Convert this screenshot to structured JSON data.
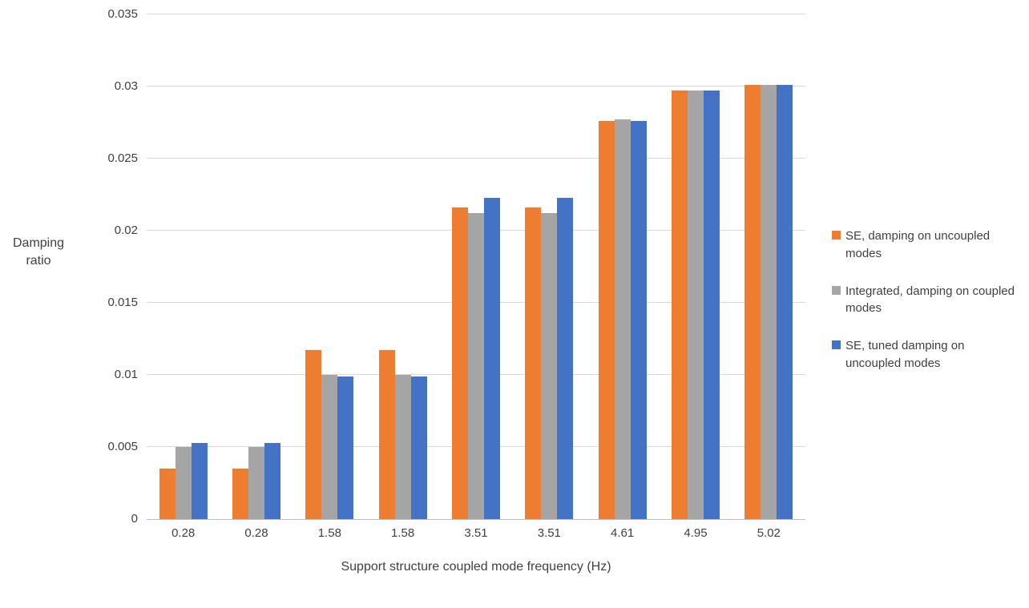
{
  "chart_data": {
    "type": "bar",
    "title": "",
    "xlabel": "Support structure coupled mode frequency (Hz)",
    "ylabel": "Damping ratio",
    "categories": [
      "0.28",
      "0.28",
      "1.58",
      "1.58",
      "3.51",
      "3.51",
      "4.61",
      "4.95",
      "5.02"
    ],
    "series": [
      {
        "name": "SE, damping on uncoupled modes",
        "color": "#ED7D31",
        "values": [
          0.0035,
          0.0035,
          0.0117,
          0.0117,
          0.0216,
          0.0216,
          0.0276,
          0.0297,
          0.0301
        ]
      },
      {
        "name": "Integrated, damping on coupled modes",
        "color": "#A5A5A5",
        "values": [
          0.005,
          0.005,
          0.01,
          0.01,
          0.0212,
          0.0212,
          0.0277,
          0.0297,
          0.0301
        ]
      },
      {
        "name": "SE, tuned damping on uncoupled modes",
        "color": "#4472C4",
        "values": [
          0.0053,
          0.0053,
          0.0099,
          0.0099,
          0.0223,
          0.0223,
          0.0276,
          0.0297,
          0.0301
        ]
      }
    ],
    "ylim": [
      0,
      0.035
    ],
    "yticks": [
      0,
      0.005,
      0.01,
      0.015,
      0.02,
      0.025,
      0.03,
      0.035
    ],
    "ytick_labels": [
      "0",
      "0.005",
      "0.01",
      "0.015",
      "0.02",
      "0.025",
      "0.03",
      "0.035"
    ],
    "grid": true,
    "legend_position": "right",
    "colors": {
      "gridline": "#D9D9D9",
      "axis_line": "#BFBFBF",
      "text": "#404040"
    }
  }
}
